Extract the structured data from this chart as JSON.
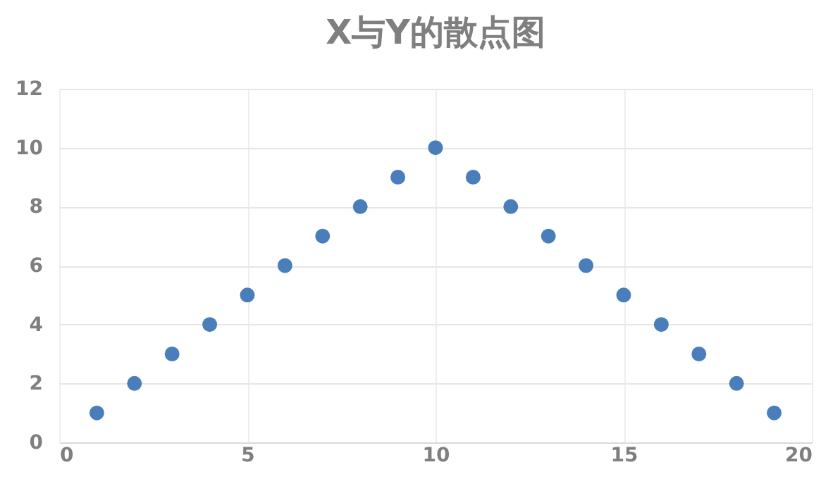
{
  "chart_data": {
    "type": "scatter",
    "title": "X与Y的散点图",
    "x": [
      1,
      2,
      3,
      4,
      5,
      6,
      7,
      8,
      9,
      10,
      11,
      12,
      13,
      14,
      15,
      16,
      17,
      18,
      19
    ],
    "values": [
      1,
      2,
      3,
      4,
      5,
      6,
      7,
      8,
      9,
      10,
      9,
      8,
      7,
      6,
      5,
      4,
      3,
      2,
      1
    ],
    "color": "#4a7ebb",
    "marker": "circle",
    "xlim": [
      0,
      20
    ],
    "xticks": [
      0,
      5,
      10,
      15,
      20
    ],
    "ylim": [
      0,
      12
    ],
    "yticks": [
      0,
      2,
      4,
      6,
      8,
      10,
      12
    ],
    "grid": true
  }
}
